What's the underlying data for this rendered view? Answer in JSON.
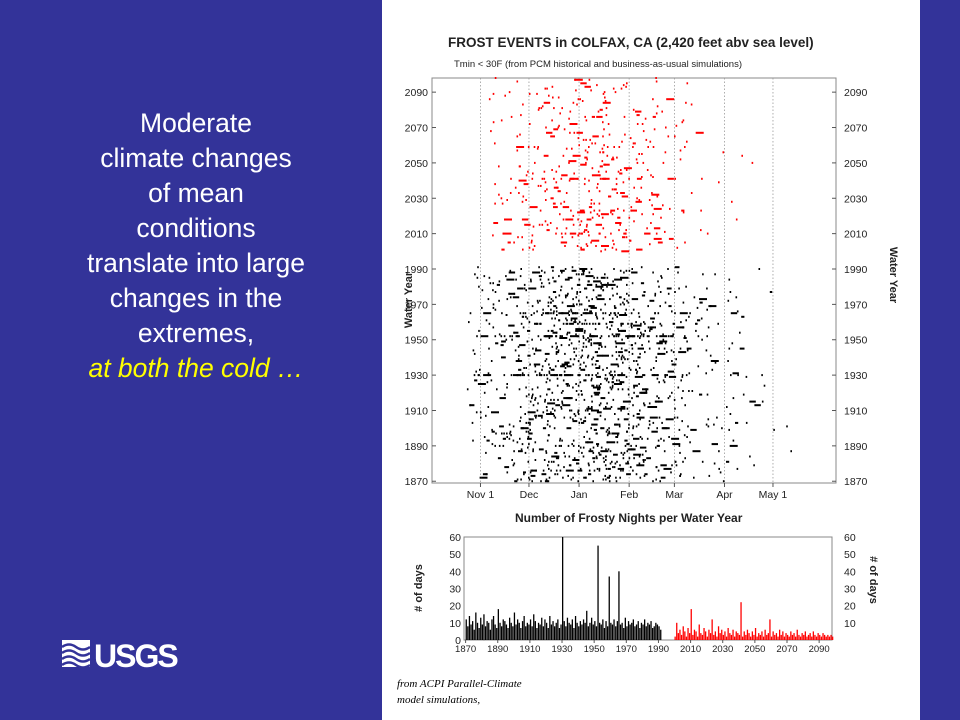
{
  "slide": {
    "headline_lines": [
      "Moderate",
      "climate changes",
      "of mean",
      "conditions",
      "translate into large",
      "changes in the",
      "extremes,"
    ],
    "headline_accent": "at both the cold …",
    "logo_text": "USGS",
    "caption_lines": [
      "from ACPI Parallel-Climate",
      "model simulations,"
    ],
    "colors": {
      "background": "#333399",
      "headline": "#ffffff",
      "accent": "#ffff00",
      "historical": "#000000",
      "projected": "#ff0000"
    }
  },
  "chart_data": [
    {
      "type": "scatter",
      "title": "FROST EVENTS in COLFAX, CA (2,420 feet abv sea level)",
      "subtitle": "Tmin < 30F (from PCM historical and business-as-usual simulations)",
      "ylabel": "Water Year",
      "ylabel_right": "Water Year",
      "xticks": [
        "Nov 1",
        "Dec",
        "Jan",
        "Feb",
        "Mar",
        "Apr",
        "May 1"
      ],
      "xtick_day": [
        0,
        30,
        61,
        92,
        120,
        151,
        181
      ],
      "xlim_day": [
        -30,
        220
      ],
      "yticks": [
        1870,
        1890,
        1910,
        1930,
        1950,
        1970,
        1990,
        2010,
        2030,
        2050,
        2070,
        2090
      ],
      "ylim": [
        1869,
        2098
      ],
      "grid": "vertical dotted lines at month ticks",
      "series": [
        {
          "color": "#000000",
          "years": [
            1870,
            1991
          ],
          "day_range": [
            -10,
            200
          ],
          "peak_day": 68,
          "spread_days": 38,
          "events_per_year": [
            12,
            8,
            14,
            9,
            11,
            6,
            16,
            10,
            7,
            13,
            9,
            15,
            8,
            11,
            10,
            6,
            12,
            14,
            9,
            7,
            18,
            10,
            8,
            12,
            11,
            9,
            7,
            13,
            10,
            8,
            16,
            9,
            12,
            10,
            7,
            11,
            14,
            8,
            10,
            9,
            12,
            8,
            15,
            11,
            7,
            10,
            9,
            13,
            8,
            12,
            10,
            7,
            14,
            9,
            11,
            8,
            10,
            12,
            7,
            9,
            60,
            11,
            8,
            13,
            10,
            9,
            12,
            7,
            14,
            10,
            8,
            11,
            9,
            12,
            10,
            17,
            8,
            10,
            13,
            9,
            11,
            8,
            55,
            10,
            9,
            12,
            7,
            11,
            8,
            37,
            10,
            9,
            12,
            8,
            11,
            40,
            9,
            10,
            7,
            13,
            8,
            11,
            9,
            10,
            12,
            8,
            9,
            11,
            7,
            10,
            9,
            12,
            8,
            10,
            9,
            11,
            7,
            8,
            10,
            9,
            8,
            6
          ]
        },
        {
          "color": "#ff0000",
          "years": [
            2000,
            2098
          ],
          "day_range": [
            5,
            190
          ],
          "peak_day": 64,
          "spread_days": 30,
          "events_per_year": [
            2,
            10,
            4,
            6,
            3,
            8,
            5,
            2,
            7,
            4,
            18,
            3,
            6,
            5,
            2,
            9,
            4,
            3,
            7,
            5,
            2,
            6,
            4,
            12,
            3,
            5,
            2,
            8,
            4,
            6,
            3,
            5,
            2,
            7,
            4,
            3,
            6,
            2,
            5,
            4,
            3,
            22,
            2,
            5,
            3,
            6,
            4,
            2,
            5,
            3,
            7,
            2,
            4,
            3,
            5,
            2,
            6,
            3,
            4,
            12,
            2,
            5,
            3,
            4,
            2,
            6,
            3,
            5,
            2,
            4,
            3,
            2,
            5,
            3,
            4,
            2,
            6,
            3,
            2,
            4,
            3,
            5,
            2,
            3,
            4,
            2,
            5,
            3,
            2,
            4,
            3,
            2,
            4,
            3,
            2,
            3,
            2,
            3,
            2
          ]
        }
      ]
    },
    {
      "type": "bar",
      "title": "Number of Frosty Nights per Water Year",
      "ylabel": "# of days",
      "ylabel_right": "# of days",
      "xticks": [
        1870,
        1890,
        1910,
        1930,
        1950,
        1970,
        1990,
        2010,
        2030,
        2050,
        2070,
        2090
      ],
      "yticks": [
        0,
        10,
        20,
        30,
        40,
        50,
        60
      ],
      "ylim": [
        0,
        60
      ],
      "note": "bar heights per year equal the events_per_year of the matching scatter series"
    }
  ]
}
